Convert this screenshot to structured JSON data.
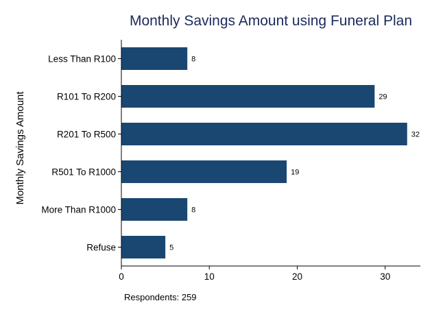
{
  "chart_data": {
    "type": "bar",
    "orientation": "horizontal",
    "title": "Monthly Savings Amount using Funeral Plan",
    "ylabel": "Monthly Savings Amount",
    "xlabel": "",
    "categories": [
      "Less Than R100",
      "R101 To R200",
      "R201 To R500",
      "R501 To R1000",
      "More Than R1000",
      "Refuse"
    ],
    "values": [
      7.5,
      28.8,
      32.5,
      18.8,
      7.5,
      5.0
    ],
    "data_labels": [
      "8",
      "29",
      "32",
      "19",
      "8",
      "5"
    ],
    "xlim": [
      0,
      34
    ],
    "xticks": [
      0,
      10,
      20,
      30
    ],
    "grid": false,
    "bar_color": "#1a4772",
    "note": "Respondents: 259"
  }
}
